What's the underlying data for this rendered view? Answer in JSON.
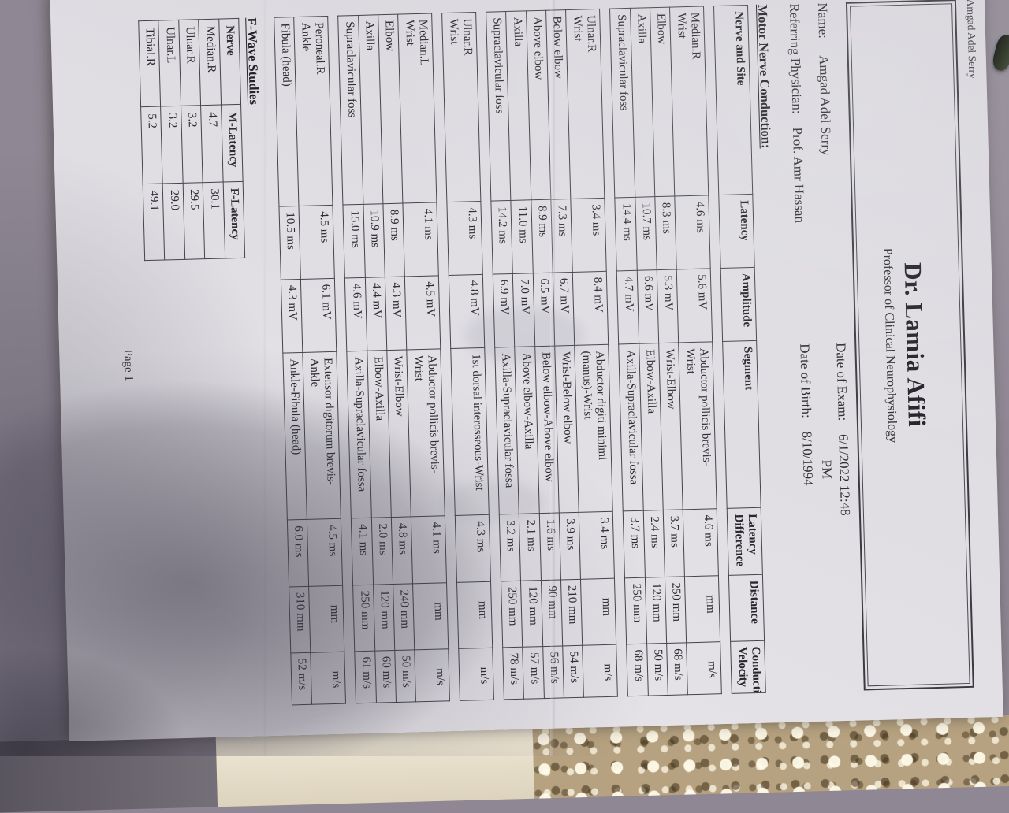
{
  "patient_header": "Amgad Adel Serry",
  "clinic": {
    "title": "Dr. Lamia Afifi",
    "subtitle": "Professor of Clinical Neurophysiology"
  },
  "info": {
    "name_label": "Name:",
    "name_value": "Amgad Adel Serry",
    "referring_label": "Referring Physician:",
    "referring_value": "Prof. Amr Hassan",
    "exam_label": "Date of Exam:",
    "exam_value": "6/1/2022 12:48",
    "exam_value_line2": "PM",
    "birth_label": "Date of Birth:",
    "birth_value": "8/10/1994"
  },
  "motor_section": {
    "heading": "Motor Nerve Conduction:",
    "columns": [
      [
        "Nerve and Site"
      ],
      [
        "Latency"
      ],
      [
        "Amplitude"
      ],
      [
        "Segment"
      ],
      [
        "Latency",
        "Difference"
      ],
      [
        "Distance"
      ],
      [
        "Conduction",
        "Velocity"
      ]
    ],
    "tables": [
      {
        "nerve": "Median.R",
        "rows": [
          {
            "site": "Wrist",
            "latency": "4.6 ms",
            "amplitude": "5.6 mV",
            "segment": [
              "Abductor pollicis brevis-",
              "Wrist"
            ],
            "diff": "4.6 ms",
            "distance": "mm",
            "velocity": "m/s",
            "first": true
          },
          {
            "site": "Elbow",
            "latency": "8.3 ms",
            "amplitude": "5.3 mV",
            "segment": [
              "Wrist-Elbow"
            ],
            "diff": "3.7 ms",
            "distance": "250 mm",
            "velocity": "68 m/s"
          },
          {
            "site": "Axilla",
            "latency": "10.7 ms",
            "amplitude": "6.6 mV",
            "segment": [
              "Elbow-Axilla"
            ],
            "diff": "2.4 ms",
            "distance": "120 mm",
            "velocity": "50 m/s"
          },
          {
            "site": "Supraclavicular foss",
            "latency": "14.4 ms",
            "amplitude": "4.7 mV",
            "segment": [
              "Axilla-Supraclavicular fossa"
            ],
            "diff": "3.7 ms",
            "distance": "250 mm",
            "velocity": "68 m/s"
          }
        ]
      },
      {
        "nerve": "Ulnar.R",
        "rows": [
          {
            "site": "Wrist",
            "latency": "3.4 ms",
            "amplitude": "8.4 mV",
            "segment": [
              "Abductor digiti minimi",
              "(manus)-Wrist"
            ],
            "diff": "3.4 ms",
            "distance": "mm",
            "velocity": "m/s",
            "first": true
          },
          {
            "site": "Below elbow",
            "latency": "7.3 ms",
            "amplitude": "6.7 mV",
            "segment": [
              "Wrist-Below elbow"
            ],
            "diff": "3.9 ms",
            "distance": "210 mm",
            "velocity": "54 m/s"
          },
          {
            "site": "Above elbow",
            "latency": "8.9 ms",
            "amplitude": "6.5 mV",
            "segment": [
              "Below elbow-Above elbow"
            ],
            "diff": "1.6 ms",
            "distance": "90 mm",
            "velocity": "56 m/s"
          },
          {
            "site": "Axilla",
            "latency": "11.0 ms",
            "amplitude": "7.0 mV",
            "segment": [
              "Above elbow-Axilla"
            ],
            "diff": "2.1 ms",
            "distance": "120 mm",
            "velocity": "57 m/s"
          },
          {
            "site": "Supraclavicular foss",
            "latency": "14.2 ms",
            "amplitude": "6.9 mV",
            "segment": [
              "Axilla-Supraclavicular fossa"
            ],
            "diff": "3.2 ms",
            "distance": "250 mm",
            "velocity": "78 m/s"
          }
        ]
      },
      {
        "nerve": "Ulnar.R",
        "rows": [
          {
            "site": "Wrist",
            "latency": "4.3 ms",
            "amplitude": "4.8 mV",
            "segment": [
              "1st dorsal interosseous-Wrist"
            ],
            "diff": "4.3 ms",
            "distance": "mm",
            "velocity": "m/s",
            "first": true
          }
        ]
      },
      {
        "nerve": "Median.L",
        "rows": [
          {
            "site": "Wrist",
            "latency": "4.1 ms",
            "amplitude": "4.5 mV",
            "segment": [
              "Abductor pollicis brevis-",
              "Wrist"
            ],
            "diff": "4.1 ms",
            "distance": "mm",
            "velocity": "m/s",
            "first": true
          },
          {
            "site": "Elbow",
            "latency": "8.9 ms",
            "amplitude": "4.3 mV",
            "segment": [
              "Wrist-Elbow"
            ],
            "diff": "4.8 ms",
            "distance": "240 mm",
            "velocity": "50 m/s"
          },
          {
            "site": "Axilla",
            "latency": "10.9 ms",
            "amplitude": "4.4 mV",
            "segment": [
              "Elbow-Axilla"
            ],
            "diff": "2.0 ms",
            "distance": "120 mm",
            "velocity": "60 m/s"
          },
          {
            "site": "Supraclavicular foss",
            "latency": "15.0 ms",
            "amplitude": "4.6 mV",
            "segment": [
              "Axilla-Supraclavicular fossa"
            ],
            "diff": "4.1 ms",
            "distance": "250 mm",
            "velocity": "61 m/s"
          }
        ]
      },
      {
        "nerve": "Peroneal.R",
        "rows": [
          {
            "site": "Ankle",
            "latency": "4.5 ms",
            "amplitude": "6.1 mV",
            "segment": [
              "Extensor digitorum brevis-",
              "Ankle"
            ],
            "diff": "4.5 ms",
            "distance": "mm",
            "velocity": "m/s",
            "first": true
          },
          {
            "site": "Fibula (head)",
            "latency": "10.5 ms",
            "amplitude": "4.3 mV",
            "segment": [
              "Ankle-Fibula (head)"
            ],
            "diff": "6.0 ms",
            "distance": "310 mm",
            "velocity": "52 m/s"
          }
        ]
      }
    ]
  },
  "fwave_section": {
    "heading": "F-Wave Studies",
    "columns": [
      "Nerve",
      "M-Latency",
      "F-Latency"
    ],
    "rows": [
      {
        "nerve": "Median.R",
        "m_latency": "4.7",
        "f_latency": "30.1"
      },
      {
        "nerve": "Ulnar.R",
        "m_latency": "3.2",
        "f_latency": "29.5"
      },
      {
        "nerve": "Ulnar.L",
        "m_latency": "3.2",
        "f_latency": "29.0"
      },
      {
        "nerve": "Tibial.R",
        "m_latency": "5.2",
        "f_latency": "49.1"
      }
    ]
  },
  "footer": "Page 1",
  "colors": {
    "paper": "#dfdde2",
    "ink": "#2e2d33",
    "table_border": "#45444b",
    "lace_fabric": "#b6a280",
    "cream_sheet": "#efe8d6"
  }
}
